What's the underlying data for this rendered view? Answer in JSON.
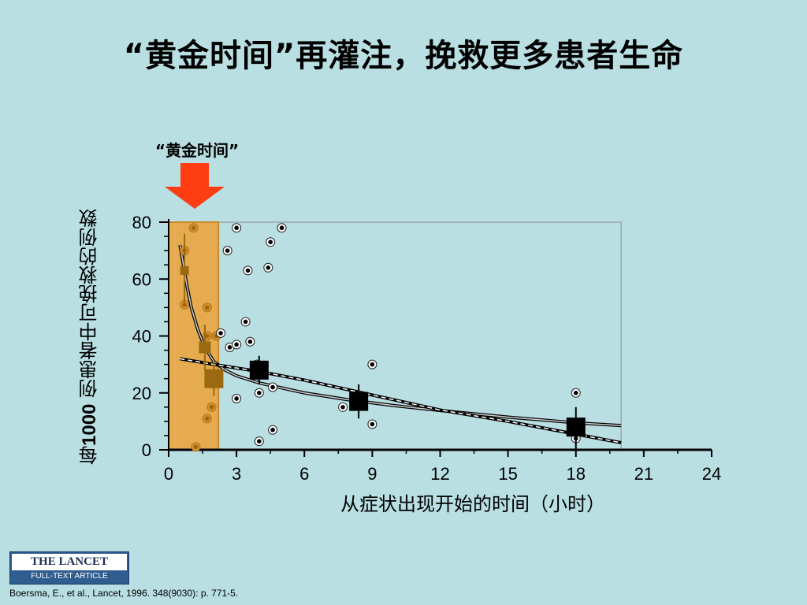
{
  "slide": {
    "title": "“黄金时间”再灌注，挽救更多患者生命",
    "golden_label": "“黄金时间”",
    "citation": "Boersma, E., et al., Lancet, 1996. 348(9030): p. 771-5."
  },
  "logo": {
    "top": "THE LANCET",
    "bottom": "FULL-TEXT ARTICLE"
  },
  "colors": {
    "background": "#b9dfe3",
    "golden_band": "#e6ab4f",
    "arrow": "#ff3d12",
    "early_markers": "#9b6a10",
    "late_markers": "#000000"
  },
  "chart_data": {
    "type": "scatter",
    "ylabel_prefix": "每",
    "ylabel_number": "1000",
    "ylabel_suffix": " 例患者中可挽救的例数",
    "xlabel": "从症状出现开始的时间（小时）",
    "xlim": [
      0,
      24
    ],
    "ylim": [
      0,
      80
    ],
    "xticks": [
      "0",
      "3",
      "6",
      "9",
      "12",
      "15",
      "18",
      "21",
      "24"
    ],
    "yticks": [
      "0",
      "20",
      "40",
      "60",
      "80"
    ],
    "highlight_band_x": [
      0,
      2.2
    ],
    "grouped_means": [
      {
        "x": 0.7,
        "y": 63,
        "ci": [
          52,
          76
        ],
        "size": "small"
      },
      {
        "x": 1.6,
        "y": 36,
        "ci": [
          28,
          44
        ],
        "size": "medium"
      },
      {
        "x": 2.0,
        "y": 25,
        "ci": [
          19,
          31
        ],
        "size": "large"
      },
      {
        "x": 4.0,
        "y": 28,
        "ci": [
          23,
          33
        ],
        "size": "large"
      },
      {
        "x": 8.4,
        "y": 17,
        "ci": [
          11,
          23
        ],
        "size": "large"
      },
      {
        "x": 18.0,
        "y": 8,
        "ci": [
          0,
          15
        ],
        "size": "large"
      }
    ],
    "trials": [
      {
        "x": 0.7,
        "y": 70
      },
      {
        "x": 0.7,
        "y": 51
      },
      {
        "x": 1.1,
        "y": 78
      },
      {
        "x": 1.7,
        "y": 50
      },
      {
        "x": 1.7,
        "y": 40
      },
      {
        "x": 1.7,
        "y": 11
      },
      {
        "x": 1.9,
        "y": 15
      },
      {
        "x": 1.2,
        "y": 1
      },
      {
        "x": 2.1,
        "y": 40
      },
      {
        "x": 2.3,
        "y": 41
      },
      {
        "x": 2.7,
        "y": 36
      },
      {
        "x": 2.6,
        "y": 70
      },
      {
        "x": 3.0,
        "y": 37
      },
      {
        "x": 3.0,
        "y": 18
      },
      {
        "x": 3.0,
        "y": 78
      },
      {
        "x": 3.4,
        "y": 45
      },
      {
        "x": 3.5,
        "y": 63
      },
      {
        "x": 3.6,
        "y": 38
      },
      {
        "x": 3.9,
        "y": 30
      },
      {
        "x": 4.0,
        "y": 20
      },
      {
        "x": 4.4,
        "y": 64
      },
      {
        "x": 4.5,
        "y": 73
      },
      {
        "x": 4.6,
        "y": 22
      },
      {
        "x": 4.6,
        "y": 7
      },
      {
        "x": 4.0,
        "y": 3
      },
      {
        "x": 5.0,
        "y": 78
      },
      {
        "x": 7.7,
        "y": 15
      },
      {
        "x": 8.4,
        "y": 17
      },
      {
        "x": 9.0,
        "y": 30
      },
      {
        "x": 9.0,
        "y": 9
      },
      {
        "x": 18.0,
        "y": 20
      },
      {
        "x": 18.0,
        "y": 4
      }
    ],
    "fit_curves": [
      {
        "name": "",
        "style": "solid",
        "x": [
          0.5,
          0.8,
          1.0,
          1.3,
          1.6,
          2.0,
          2.5,
          3.0,
          4.0,
          6.0,
          8.0,
          10.0,
          12.0,
          15.0,
          18.0,
          20.0
        ],
        "y": [
          72,
          58,
          50,
          42,
          36,
          31,
          28,
          26,
          23.5,
          20,
          17.5,
          15.5,
          13.8,
          11.5,
          9.5,
          8.5
        ]
      },
      {
        "name": "",
        "style": "dashed",
        "x": [
          0.5,
          2.0,
          4.0,
          6.0,
          8.0,
          10.0,
          12.0,
          15.0,
          18.0,
          20.0
        ],
        "y": [
          32,
          30,
          27.5,
          24.5,
          21,
          17.5,
          14,
          10,
          5.5,
          2.5
        ]
      }
    ]
  }
}
